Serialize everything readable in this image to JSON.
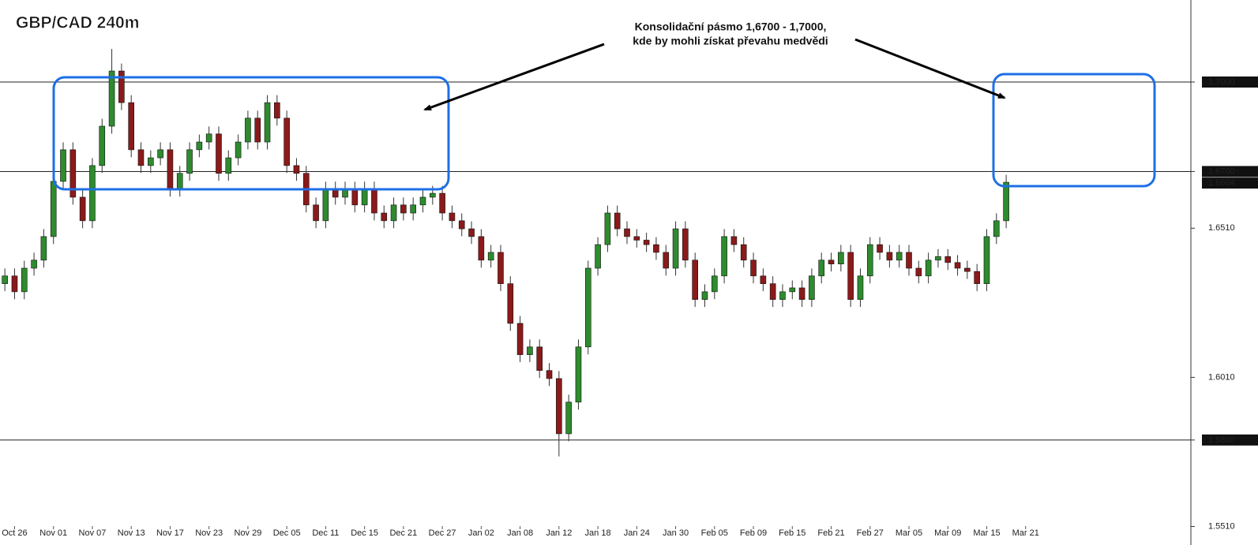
{
  "chart_data": {
    "type": "candlestick",
    "title": "GBP/CAD 240m",
    "annotation": [
      "Konsolidační pásmo 1,6700 - 1,7000,",
      "kde by mohli získat převahu medvědi"
    ],
    "up_color": "#2e8b2e",
    "down_color": "#8b1a1a",
    "x": [
      0.5,
      1.5,
      2.5,
      3.5,
      4.5,
      5.5,
      6.5,
      7.5,
      8.5,
      9.5,
      10.5,
      11.5,
      12.5,
      13.5,
      14.5,
      15.5,
      16.5,
      17.5,
      18.5,
      19.5,
      20.5,
      21.5,
      22.5,
      23.5,
      24.5,
      25.5,
      26.5,
      27.5,
      28.5,
      29.5,
      30.5,
      31.5,
      32.5,
      33.5,
      34.5,
      35.5,
      36.5,
      37.5,
      38.5,
      39.5,
      40.5,
      41.5,
      42.5,
      43.5,
      44.5,
      45.5,
      46.5,
      47.5,
      48.5,
      49.5,
      50.5,
      51.5,
      52.5,
      53.5,
      54.5,
      55.5,
      56.5,
      57.5,
      58.5,
      59.5,
      60.5,
      61.5,
      62.5,
      63.5,
      64.5,
      65.5,
      66.5,
      67.5,
      68.5,
      69.5,
      70.5,
      71.5,
      72.5,
      73.5,
      74.5,
      75.5,
      76.5,
      77.5,
      78.5,
      79.5,
      80.5,
      81.5,
      82.5,
      83.5,
      84.5,
      85.5,
      86.5,
      87.5,
      88.5,
      89.5,
      90.5,
      91.5,
      92.5,
      93.5,
      94.5,
      95.5,
      96.5,
      97.5,
      98.5,
      99.5,
      100.5,
      101.5,
      102.5,
      103.5
    ],
    "open": [
      1.6324,
      1.635,
      1.6297,
      1.6376,
      1.6403,
      1.6482,
      1.6667,
      1.6773,
      1.6614,
      1.6535,
      1.672,
      1.6852,
      1.7037,
      1.6931,
      1.6773,
      1.672,
      1.6746,
      1.6773,
      1.6641,
      1.6694,
      1.6773,
      1.6799,
      1.6826,
      1.6694,
      1.6746,
      1.6799,
      1.6879,
      1.6799,
      1.6931,
      1.6879,
      1.672,
      1.6694,
      1.6588,
      1.6535,
      1.6641,
      1.6614,
      1.6641,
      1.6588,
      1.6641,
      1.6561,
      1.6535,
      1.6588,
      1.6561,
      1.6588,
      1.6614,
      1.6627,
      1.6561,
      1.6535,
      1.6508,
      1.6482,
      1.6403,
      1.6429,
      1.6324,
      1.6191,
      1.6086,
      1.6112,
      1.6033,
      1.6006,
      1.5821,
      1.5927,
      1.6112,
      1.6376,
      1.6455,
      1.6561,
      1.6508,
      1.6482,
      1.647,
      1.6455,
      1.6429,
      1.6376,
      1.6508,
      1.6403,
      1.6271,
      1.6297,
      1.635,
      1.6482,
      1.6455,
      1.6403,
      1.635,
      1.6324,
      1.6271,
      1.6297,
      1.631,
      1.6271,
      1.635,
      1.6403,
      1.639,
      1.6429,
      1.6271,
      1.635,
      1.6455,
      1.6429,
      1.6403,
      1.6429,
      1.6376,
      1.635,
      1.6403,
      1.6415,
      1.6395,
      1.6376,
      1.6365,
      1.6324,
      1.6482,
      1.6535
    ],
    "high": [
      1.6375,
      1.6375,
      1.6401,
      1.6428,
      1.6507,
      1.6692,
      1.6798,
      1.6798,
      1.6639,
      1.6745,
      1.6877,
      1.7111,
      1.7062,
      1.6956,
      1.6798,
      1.6771,
      1.6798,
      1.6798,
      1.6719,
      1.6798,
      1.6824,
      1.6851,
      1.6851,
      1.6771,
      1.6824,
      1.6904,
      1.6904,
      1.6956,
      1.6956,
      1.6904,
      1.6745,
      1.6719,
      1.6613,
      1.6666,
      1.6666,
      1.6666,
      1.6666,
      1.6666,
      1.6666,
      1.6586,
      1.6613,
      1.6613,
      1.6613,
      1.6639,
      1.6652,
      1.6652,
      1.6586,
      1.656,
      1.6533,
      1.6507,
      1.6454,
      1.6454,
      1.6349,
      1.6216,
      1.6137,
      1.6137,
      1.6058,
      1.6031,
      1.5952,
      1.6137,
      1.6401,
      1.648,
      1.6586,
      1.6586,
      1.6533,
      1.6507,
      1.6495,
      1.648,
      1.6454,
      1.6533,
      1.6533,
      1.6428,
      1.6322,
      1.6375,
      1.6507,
      1.6507,
      1.648,
      1.6428,
      1.6375,
      1.6349,
      1.6322,
      1.6335,
      1.6335,
      1.6375,
      1.6428,
      1.6428,
      1.6454,
      1.6454,
      1.6375,
      1.648,
      1.648,
      1.6454,
      1.6454,
      1.6454,
      1.6401,
      1.6428,
      1.644,
      1.644,
      1.642,
      1.6401,
      1.639,
      1.6507,
      1.656,
      1.6689
    ],
    "low": [
      1.6299,
      1.6272,
      1.6272,
      1.6351,
      1.6378,
      1.6457,
      1.6642,
      1.6589,
      1.651,
      1.651,
      1.6695,
      1.6827,
      1.6906,
      1.6748,
      1.6695,
      1.6695,
      1.6721,
      1.6616,
      1.6616,
      1.6669,
      1.6748,
      1.6774,
      1.6669,
      1.6669,
      1.6721,
      1.6774,
      1.6774,
      1.6774,
      1.6854,
      1.6695,
      1.6669,
      1.6563,
      1.651,
      1.651,
      1.6589,
      1.6589,
      1.6563,
      1.6563,
      1.6536,
      1.651,
      1.651,
      1.6536,
      1.6536,
      1.6563,
      1.6589,
      1.6536,
      1.651,
      1.6483,
      1.6457,
      1.6378,
      1.6378,
      1.6299,
      1.6166,
      1.6061,
      1.6061,
      1.6008,
      1.5981,
      1.5745,
      1.5796,
      1.5902,
      1.6087,
      1.6351,
      1.643,
      1.6483,
      1.6457,
      1.6445,
      1.643,
      1.6404,
      1.6351,
      1.6351,
      1.6378,
      1.6246,
      1.6246,
      1.6272,
      1.6325,
      1.643,
      1.6378,
      1.6325,
      1.6299,
      1.6246,
      1.6246,
      1.6272,
      1.6246,
      1.6246,
      1.6325,
      1.6365,
      1.6365,
      1.6246,
      1.6246,
      1.6325,
      1.6404,
      1.6378,
      1.6378,
      1.6351,
      1.6325,
      1.6325,
      1.6378,
      1.637,
      1.6351,
      1.634,
      1.6299,
      1.6299,
      1.6457,
      1.651
    ],
    "close": [
      1.635,
      1.6297,
      1.6376,
      1.6403,
      1.6482,
      1.6667,
      1.6773,
      1.6614,
      1.6535,
      1.672,
      1.6852,
      1.7037,
      1.6931,
      1.6773,
      1.672,
      1.6746,
      1.6773,
      1.6641,
      1.6694,
      1.6773,
      1.6799,
      1.6826,
      1.6694,
      1.6746,
      1.6799,
      1.6879,
      1.6799,
      1.6931,
      1.6879,
      1.672,
      1.6694,
      1.6588,
      1.6535,
      1.6641,
      1.6614,
      1.6641,
      1.6588,
      1.6641,
      1.6561,
      1.6535,
      1.6588,
      1.6561,
      1.6588,
      1.6614,
      1.6627,
      1.6561,
      1.6535,
      1.6508,
      1.6482,
      1.6403,
      1.6429,
      1.6324,
      1.6191,
      1.6086,
      1.6112,
      1.6033,
      1.6006,
      1.5821,
      1.5927,
      1.6112,
      1.6376,
      1.6455,
      1.6561,
      1.6508,
      1.6482,
      1.647,
      1.6455,
      1.6429,
      1.6376,
      1.6508,
      1.6403,
      1.6271,
      1.6297,
      1.635,
      1.6482,
      1.6455,
      1.6403,
      1.635,
      1.6324,
      1.6271,
      1.6297,
      1.631,
      1.6271,
      1.635,
      1.6403,
      1.639,
      1.6429,
      1.6271,
      1.635,
      1.6455,
      1.6429,
      1.6403,
      1.6429,
      1.6376,
      1.635,
      1.6403,
      1.6415,
      1.6395,
      1.6376,
      1.6365,
      1.6324,
      1.6482,
      1.6535,
      1.6664
    ],
    "xlim": [
      0,
      122.5
    ],
    "xticks": [
      {
        "value": 1.5,
        "label": "Oct 26"
      },
      {
        "value": 5.5,
        "label": "Nov 01"
      },
      {
        "value": 9.5,
        "label": "Nov 07"
      },
      {
        "value": 13.5,
        "label": "Nov 13"
      },
      {
        "value": 17.5,
        "label": "Nov 17"
      },
      {
        "value": 21.5,
        "label": "Nov 23"
      },
      {
        "value": 25.5,
        "label": "Nov 29"
      },
      {
        "value": 29.5,
        "label": "Dec 05"
      },
      {
        "value": 33.5,
        "label": "Dec 11"
      },
      {
        "value": 37.5,
        "label": "Dec 15"
      },
      {
        "value": 41.5,
        "label": "Dec 21"
      },
      {
        "value": 45.5,
        "label": "Dec 27"
      },
      {
        "value": 49.5,
        "label": "Jan 02"
      },
      {
        "value": 53.5,
        "label": "Jan 08"
      },
      {
        "value": 57.5,
        "label": "Jan 12"
      },
      {
        "value": 61.5,
        "label": "Jan 18"
      },
      {
        "value": 65.5,
        "label": "Jan 24"
      },
      {
        "value": 69.5,
        "label": "Jan 30"
      },
      {
        "value": 73.5,
        "label": "Feb 05"
      },
      {
        "value": 77.5,
        "label": "Feb 09"
      },
      {
        "value": 81.5,
        "label": "Feb 15"
      },
      {
        "value": 85.5,
        "label": "Feb 21"
      },
      {
        "value": 89.5,
        "label": "Feb 27"
      },
      {
        "value": 93.5,
        "label": "Mar 05"
      },
      {
        "value": 97.5,
        "label": "Mar 09"
      },
      {
        "value": 101.5,
        "label": "Mar 15"
      },
      {
        "value": 105.5,
        "label": "Mar 21"
      }
    ],
    "ylim": [
      1.5448,
      1.7275
    ],
    "yticks": [
      {
        "value": 1.7,
        "label": "1.7000"
      },
      {
        "value": 1.67,
        "label": "1.6700"
      },
      {
        "value": 1.651,
        "label": "1.6510"
      },
      {
        "value": 1.601,
        "label": "1.6010"
      },
      {
        "value": 1.58,
        "label": "1.5800"
      },
      {
        "value": 1.551,
        "label": "1.5510"
      }
    ],
    "hlines": [
      1.7,
      1.67,
      1.58
    ],
    "last_price": {
      "value": 1.6664,
      "label": "1.6664"
    }
  }
}
